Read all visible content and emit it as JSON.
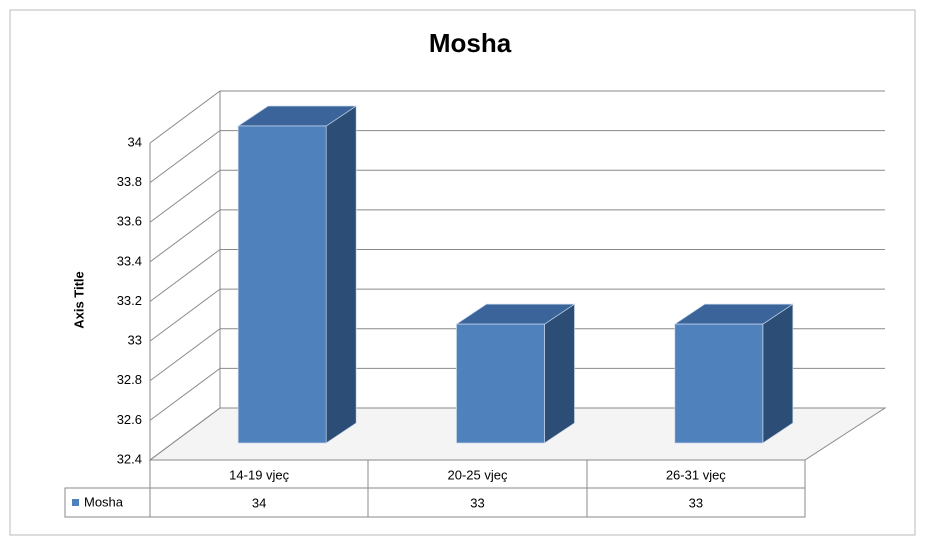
{
  "chart_data": {
    "type": "bar",
    "title": "Mosha",
    "y_label": "Axis Title",
    "categories": [
      "14-19 vjeç",
      "20-25 vjeç",
      "26-31 vjeç"
    ],
    "series": [
      {
        "name": "Mosha",
        "color": "#4f81bd",
        "values": [
          34,
          33,
          33
        ]
      }
    ],
    "ylim": [
      32.4,
      34
    ],
    "yticks": [
      32.4,
      32.6,
      32.8,
      33,
      33.2,
      33.4,
      33.6,
      33.8,
      34
    ],
    "grid": true
  }
}
